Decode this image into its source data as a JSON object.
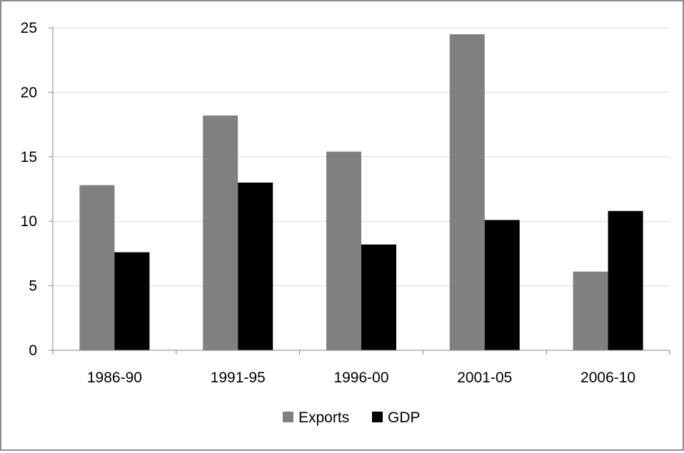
{
  "chart_data": {
    "type": "bar",
    "categories": [
      "1986-90",
      "1991-95",
      "1996-00",
      "2001-05",
      "2006-10"
    ],
    "series": [
      {
        "name": "Exports",
        "values": [
          12.8,
          18.2,
          15.4,
          24.5,
          6.1
        ],
        "color": "#808080"
      },
      {
        "name": "GDP",
        "values": [
          7.6,
          13.0,
          8.2,
          10.1,
          10.8
        ],
        "color": "#000000"
      }
    ],
    "ylim": [
      0,
      25
    ],
    "yticks": [
      "0",
      "5",
      "10",
      "15",
      "20",
      "25"
    ],
    "ytick_values": [
      0,
      5,
      10,
      15,
      20,
      25
    ],
    "grid": true,
    "legend_position": "bottom",
    "gridline_color": "#d9d9d9",
    "axis_color": "#868686"
  }
}
